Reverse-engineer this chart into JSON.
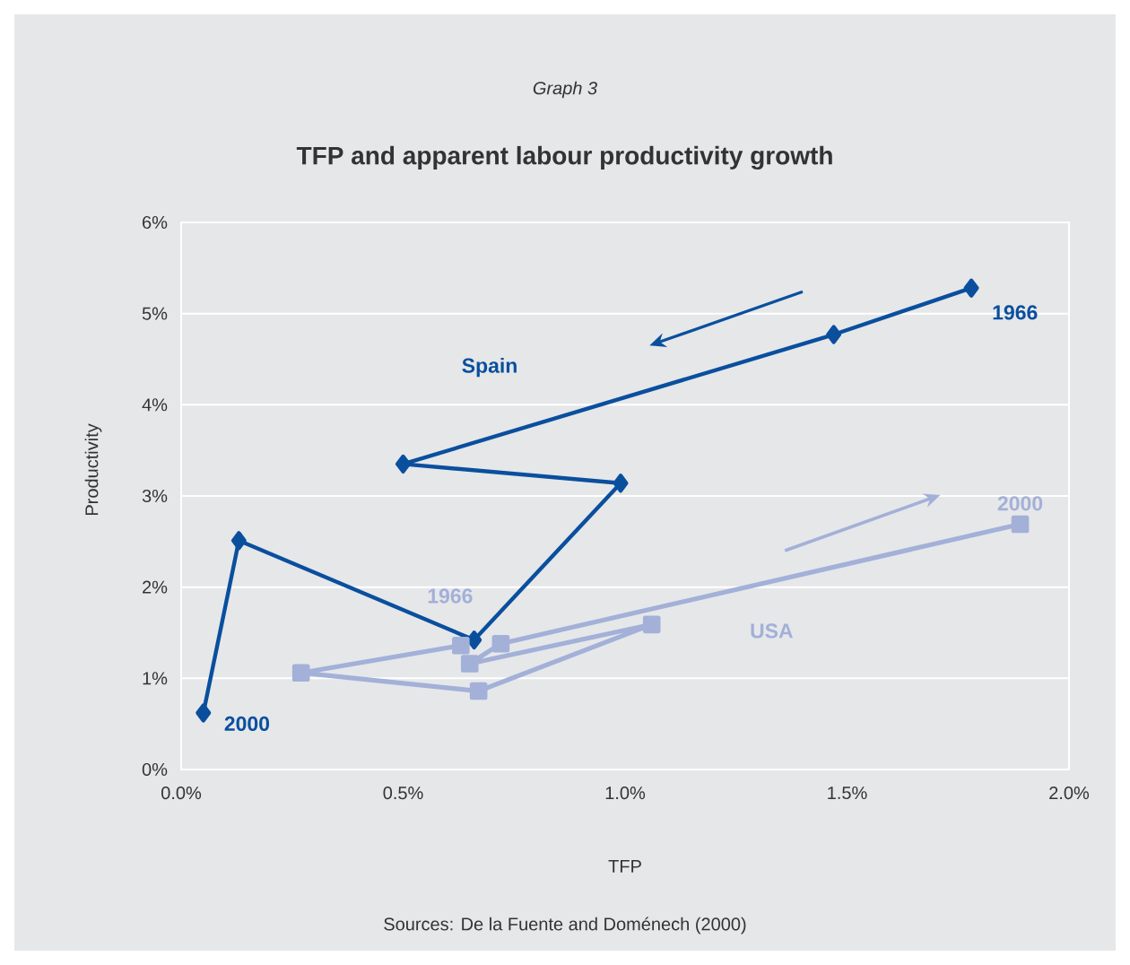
{
  "chart_data": {
    "type": "line",
    "subtitle": "Graph 3",
    "title": "TFP and apparent labour productivity growth",
    "xlabel": "TFP",
    "ylabel": "Productivity",
    "xlim": [
      0,
      2
    ],
    "xticks": [
      {
        "value": 0,
        "label": "0.0%"
      },
      {
        "value": 0.5,
        "label": "0.5%"
      },
      {
        "value": 1,
        "label": "1.0%"
      },
      {
        "value": 1.5,
        "label": "1.5%"
      },
      {
        "value": 2,
        "label": "2.0%"
      }
    ],
    "ylim": [
      0,
      6
    ],
    "yticks": [
      {
        "value": 0,
        "label": "0%"
      },
      {
        "value": 1,
        "label": "1%"
      },
      {
        "value": 2,
        "label": "2%"
      },
      {
        "value": 3,
        "label": "3%"
      },
      {
        "value": 4,
        "label": "4%"
      },
      {
        "value": 5,
        "label": "5%"
      },
      {
        "value": 6,
        "label": "6%"
      }
    ],
    "grid": "y",
    "series": [
      {
        "name": "Spain",
        "color": "#0a4f9e",
        "marker": "diamond",
        "x": [
          1.78,
          1.47,
          0.5,
          0.99,
          0.66,
          0.13,
          0.05
        ],
        "values": [
          5.28,
          4.77,
          3.35,
          3.14,
          1.42,
          2.51,
          0.62
        ]
      },
      {
        "name": "USA",
        "color": "#a3b0d8",
        "marker": "square",
        "x": [
          0.63,
          0.27,
          0.67,
          1.06,
          0.65,
          0.72,
          1.89
        ],
        "values": [
          1.36,
          1.06,
          0.86,
          1.59,
          1.16,
          1.38,
          2.69
        ]
      }
    ],
    "annotations": [
      {
        "text": "1966",
        "x": 1.78,
        "y": 5.28
      },
      {
        "text": "2000",
        "x": 0.05,
        "y": 0.62
      },
      {
        "text": "1966",
        "x": 0.63,
        "y": 1.36
      },
      {
        "text": "2000",
        "x": 1.89,
        "y": 2.69
      },
      "Sources: De la Fuente and Doménech (2000)"
    ]
  }
}
